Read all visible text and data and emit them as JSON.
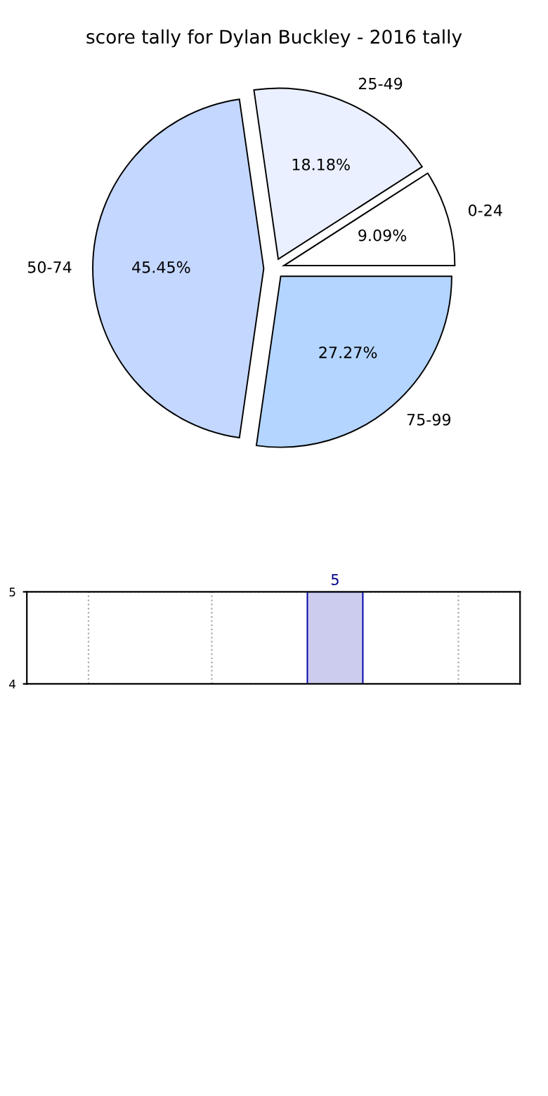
{
  "chart_data": [
    {
      "type": "pie",
      "title": "score tally for Dylan Buckley - 2016 tally",
      "categories": [
        "0-24",
        "25-49",
        "50-74",
        "75-99"
      ],
      "values": [
        9.09,
        18.18,
        45.45,
        27.27
      ],
      "colors": [
        "#ffffff",
        "#eaf0ff",
        "#c4d7ff",
        "#b4d5ff"
      ],
      "value_labels": [
        "9.09%",
        "18.18%",
        "45.45%",
        "27.27%"
      ]
    },
    {
      "type": "bar",
      "categories": [
        null,
        null,
        null,
        null
      ],
      "values": [
        null,
        null,
        5,
        null
      ],
      "value_labels": [
        null,
        null,
        "5",
        null
      ],
      "color": "#ccccee",
      "ylim": [
        4,
        5
      ],
      "yticks": [
        4,
        5
      ],
      "grid": true,
      "tick_labels": "y"
    }
  ]
}
